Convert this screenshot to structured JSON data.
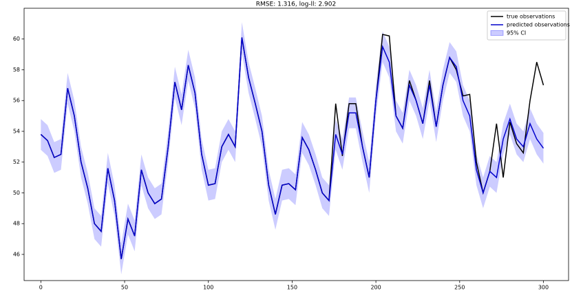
{
  "chart_data": {
    "type": "line",
    "title": "RMSE: 1.316, log-ll: 2.902",
    "x": [
      0,
      4,
      8,
      12,
      16,
      20,
      24,
      28,
      32,
      36,
      40,
      44,
      48,
      52,
      56,
      60,
      64,
      68,
      72,
      76,
      80,
      84,
      88,
      92,
      96,
      100,
      104,
      108,
      112,
      116,
      120,
      124,
      128,
      132,
      136,
      140,
      144,
      148,
      152,
      156,
      160,
      164,
      168,
      172,
      176,
      180,
      184,
      188,
      192,
      196,
      200,
      204,
      208,
      212,
      216,
      220,
      224,
      228,
      232,
      236,
      240,
      244,
      248,
      252,
      256,
      260,
      264,
      268,
      272,
      276,
      280,
      284,
      288,
      292,
      296,
      300
    ],
    "series": [
      {
        "name": "true observations",
        "color": "#000000",
        "values": [
          53.8,
          53.4,
          52.3,
          52.5,
          56.8,
          55.0,
          52.0,
          50.3,
          48.0,
          47.5,
          51.6,
          49.5,
          45.7,
          48.3,
          47.2,
          51.5,
          50.0,
          49.3,
          49.6,
          53.0,
          57.2,
          55.4,
          58.3,
          56.5,
          52.5,
          50.5,
          50.6,
          53.0,
          53.8,
          53.0,
          60.1,
          57.5,
          55.8,
          54.0,
          50.5,
          48.6,
          50.5,
          50.6,
          50.2,
          53.6,
          52.8,
          51.5,
          50.0,
          49.5,
          55.8,
          52.4,
          55.8,
          55.8,
          53.0,
          51.0,
          56.0,
          60.3,
          60.2,
          55.0,
          54.2,
          57.3,
          56.0,
          54.5,
          57.3,
          54.3,
          57.0,
          58.8,
          58.0,
          56.3,
          56.4,
          52.0,
          50.0,
          51.4,
          54.5,
          51.0,
          54.6,
          53.2,
          52.6,
          56.0,
          58.5,
          57.0
        ]
      },
      {
        "name": "predicted observations",
        "color": "#0000cc",
        "values": [
          53.8,
          53.4,
          52.3,
          52.5,
          56.8,
          55.0,
          52.0,
          50.3,
          48.0,
          47.5,
          51.6,
          49.5,
          45.7,
          48.3,
          47.2,
          51.5,
          50.0,
          49.3,
          49.6,
          53.0,
          57.2,
          55.4,
          58.3,
          56.5,
          52.5,
          50.5,
          50.6,
          53.0,
          53.8,
          53.0,
          60.1,
          57.5,
          55.8,
          54.0,
          50.5,
          48.6,
          50.5,
          50.6,
          50.2,
          53.6,
          52.8,
          51.5,
          50.0,
          49.5,
          53.8,
          52.5,
          55.2,
          55.2,
          53.0,
          51.0,
          56.0,
          59.5,
          58.5,
          55.0,
          54.2,
          57.0,
          56.0,
          54.5,
          57.0,
          54.3,
          57.0,
          58.8,
          58.2,
          56.0,
          55.0,
          51.5,
          50.0,
          51.4,
          51.0,
          53.5,
          54.8,
          53.5,
          53.0,
          54.5,
          53.5,
          52.9
        ]
      }
    ],
    "band": {
      "name": "95% CI",
      "color": "#0000ff",
      "upper": [
        54.8,
        54.4,
        53.3,
        53.5,
        57.8,
        56.0,
        53.0,
        51.3,
        49.0,
        48.5,
        52.6,
        50.5,
        46.7,
        49.3,
        48.2,
        52.5,
        51.0,
        50.3,
        50.6,
        54.0,
        58.2,
        56.4,
        59.3,
        57.5,
        53.5,
        51.5,
        51.6,
        54.0,
        54.8,
        54.0,
        61.1,
        58.5,
        56.8,
        55.0,
        51.5,
        49.6,
        51.5,
        51.6,
        51.2,
        54.6,
        53.8,
        52.5,
        51.0,
        50.5,
        54.8,
        53.5,
        56.2,
        56.2,
        54.0,
        52.0,
        57.0,
        60.5,
        59.5,
        56.0,
        55.2,
        58.0,
        57.0,
        55.5,
        58.0,
        55.3,
        58.0,
        59.8,
        59.2,
        57.0,
        56.0,
        52.5,
        51.0,
        52.4,
        52.0,
        54.5,
        55.8,
        54.5,
        54.0,
        55.5,
        54.5,
        53.9
      ],
      "lower": [
        52.8,
        52.4,
        51.3,
        51.5,
        55.8,
        54.0,
        51.0,
        49.3,
        47.0,
        46.5,
        50.6,
        48.5,
        44.7,
        47.3,
        46.2,
        50.5,
        49.0,
        48.3,
        48.6,
        52.0,
        56.2,
        54.4,
        57.3,
        55.5,
        51.5,
        49.5,
        49.6,
        52.0,
        52.8,
        52.0,
        59.1,
        56.5,
        54.8,
        53.0,
        49.5,
        47.6,
        49.5,
        49.6,
        49.2,
        52.6,
        51.8,
        50.5,
        49.0,
        48.5,
        52.8,
        51.5,
        54.2,
        54.2,
        52.0,
        50.0,
        55.0,
        58.5,
        57.5,
        54.0,
        53.2,
        56.0,
        55.0,
        53.5,
        56.0,
        53.3,
        56.0,
        57.8,
        57.2,
        55.0,
        54.0,
        50.5,
        49.0,
        50.4,
        50.0,
        52.5,
        53.8,
        52.5,
        52.0,
        53.5,
        52.5,
        51.9
      ]
    },
    "xlim": [
      -10,
      315
    ],
    "ylim": [
      44.3,
      62.0
    ],
    "xticks": [
      0,
      50,
      100,
      150,
      200,
      250,
      300
    ],
    "yticks": [
      46,
      48,
      50,
      52,
      54,
      56,
      58,
      60
    ],
    "legend": "upper right"
  }
}
